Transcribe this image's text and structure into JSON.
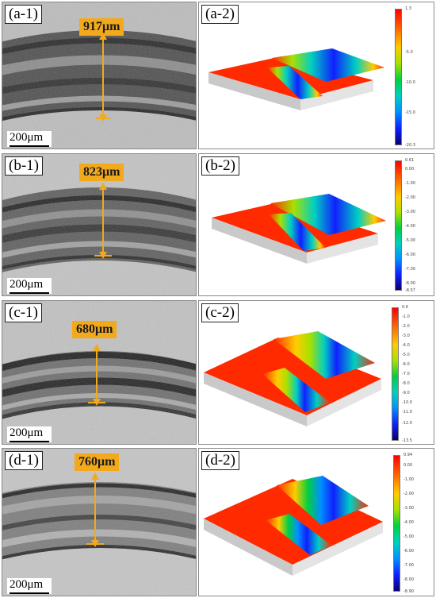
{
  "rows": [
    {
      "micro": {
        "label": "(a-1)",
        "measurement": "917μm",
        "scale_bar": "200μm",
        "track_fraction": 0.84
      },
      "profile": {
        "label": "(a-2)",
        "scale_values": [
          "1.3",
          "-5.0",
          "-10.0",
          "-15.0",
          "-20.3"
        ]
      }
    },
    {
      "micro": {
        "label": "(b-1)",
        "measurement": "823μm",
        "scale_bar": "200μm",
        "track_fraction": 0.78
      },
      "profile": {
        "label": "(b-2)",
        "scale_values": [
          "0.61",
          "0.00",
          "-1.00",
          "-2.00",
          "-3.00",
          "-4.00",
          "-5.00",
          "-6.00",
          "-7.00",
          "-8.00",
          "-8.57"
        ]
      }
    },
    {
      "micro": {
        "label": "(c-1)",
        "measurement": "680μm",
        "scale_bar": "200μm",
        "track_fraction": 0.68
      },
      "profile": {
        "label": "(c-2)",
        "scale_values": [
          "0.6",
          "-1.0",
          "-2.0",
          "-3.0",
          "-4.0",
          "-5.0",
          "-6.0",
          "-7.0",
          "-8.0",
          "-9.0",
          "-10.0",
          "-11.0",
          "-12.0",
          "-13.5"
        ]
      }
    },
    {
      "micro": {
        "label": "(d-1)",
        "measurement": "760μm",
        "scale_bar": "200μm",
        "track_fraction": 0.72
      },
      "profile": {
        "label": "(d-2)",
        "scale_values": [
          "0.94",
          "0.00",
          "-1.00",
          "-2.00",
          "-3.00",
          "-4.00",
          "-5.00",
          "-6.00",
          "-7.00",
          "-8.00",
          "-8.90"
        ]
      }
    }
  ]
}
